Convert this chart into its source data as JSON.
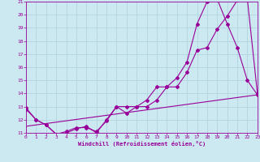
{
  "xlabel": "Windchill (Refroidissement éolien,°C)",
  "xlim": [
    0,
    23
  ],
  "ylim": [
    11,
    21
  ],
  "yticks": [
    11,
    12,
    13,
    14,
    15,
    16,
    17,
    18,
    19,
    20,
    21
  ],
  "xticks": [
    0,
    1,
    2,
    3,
    4,
    5,
    6,
    7,
    8,
    9,
    10,
    11,
    12,
    13,
    14,
    15,
    16,
    17,
    18,
    19,
    20,
    21,
    22,
    23
  ],
  "background_color": "#cce8f0",
  "grid_color": "#b0d4e0",
  "line_color": "#990099",
  "line1_x": [
    0,
    1,
    2,
    3,
    4,
    5,
    6,
    7,
    8,
    9,
    10,
    11,
    12,
    13,
    14,
    15,
    16,
    17,
    18,
    19,
    20,
    21,
    22,
    23
  ],
  "line1_y": [
    12.8,
    12.0,
    11.6,
    10.9,
    11.1,
    11.4,
    11.4,
    11.1,
    11.9,
    13.0,
    13.0,
    13.0,
    13.0,
    13.5,
    14.5,
    14.5,
    15.6,
    17.3,
    17.5,
    18.9,
    19.9,
    21.1,
    21.2,
    14.0
  ],
  "line2_x": [
    0,
    1,
    2,
    3,
    4,
    5,
    6,
    7,
    8,
    9,
    10,
    11,
    12,
    13,
    14,
    15,
    16,
    17,
    18,
    19,
    20,
    21,
    22,
    23
  ],
  "line2_y": [
    12.9,
    12.0,
    11.6,
    10.9,
    11.0,
    11.3,
    11.5,
    11.0,
    12.0,
    13.0,
    12.5,
    13.0,
    13.5,
    14.5,
    14.5,
    15.2,
    16.4,
    19.3,
    21.0,
    21.2,
    19.3,
    17.5,
    15.0,
    13.9
  ],
  "line3_x": [
    0,
    23
  ],
  "line3_y": [
    11.5,
    13.9
  ]
}
